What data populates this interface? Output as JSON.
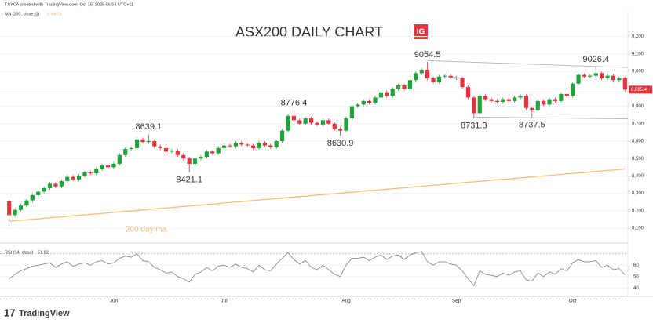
{
  "chart_data": {
    "type": "candlestick",
    "title": "ASX200 DAILY CHART",
    "logo": "IG",
    "brand": "TradingView",
    "credit": "TSYCA created with TradingView.com, Oct 15, 2025 06:54 UTC+11",
    "up_color": "#1fa33a",
    "down_color": "#e3333b",
    "categories": [
      null,
      null,
      null,
      null,
      null,
      null,
      null,
      null,
      null,
      null,
      null,
      null,
      null,
      null,
      null,
      null,
      null,
      null,
      "Jun",
      null,
      null,
      null,
      null,
      null,
      null,
      null,
      null,
      null,
      null,
      null,
      null,
      null,
      null,
      null,
      null,
      null,
      null,
      "Jul",
      null,
      null,
      null,
      null,
      null,
      null,
      null,
      null,
      null,
      null,
      null,
      null,
      null,
      null,
      null,
      null,
      null,
      null,
      null,
      null,
      "Aug",
      null,
      null,
      null,
      null,
      null,
      null,
      null,
      null,
      null,
      null,
      null,
      null,
      null,
      null,
      null,
      null,
      null,
      null,
      "Sep",
      null,
      null,
      null,
      null,
      null,
      null,
      null,
      null,
      null,
      null,
      null,
      null,
      null,
      null,
      null,
      null,
      null,
      null,
      null,
      "Oct",
      null,
      null,
      null,
      null,
      null,
      null,
      null,
      null,
      null
    ],
    "open": [
      8255,
      8175,
      8205,
      8230,
      8260,
      8290,
      8310,
      8330,
      8355,
      8340,
      8370,
      8395,
      8380,
      8400,
      8420,
      8415,
      8440,
      8460,
      8450,
      8470,
      8520,
      8555,
      8560,
      8610,
      8595,
      8600,
      8570,
      8560,
      8540,
      8545,
      8520,
      8500,
      8470,
      8500,
      8510,
      8540,
      8530,
      8560,
      8575,
      8570,
      8590,
      8580,
      8575,
      8560,
      8590,
      8575,
      8565,
      8600,
      8660,
      8745,
      8720,
      8700,
      8730,
      8705,
      8695,
      8720,
      8700,
      8670,
      8660,
      8730,
      8800,
      8810,
      8830,
      8820,
      8850,
      8880,
      8860,
      8900,
      8920,
      8900,
      8950,
      8990,
      9010,
      8960,
      8940,
      8970,
      8975,
      8965,
      8960,
      8910,
      8850,
      8760,
      8860,
      8840,
      8830,
      8825,
      8840,
      8830,
      8850,
      8860,
      8790,
      8780,
      8830,
      8810,
      8840,
      8830,
      8870,
      8860,
      8930,
      8980,
      8970,
      8975,
      8990,
      8960,
      8975,
      8950,
      8960
    ],
    "high": [
      8262,
      8215,
      8240,
      8270,
      8300,
      8320,
      8340,
      8365,
      8365,
      8380,
      8405,
      8405,
      8410,
      8430,
      8430,
      8450,
      8470,
      8470,
      8480,
      8530,
      8565,
      8570,
      8620,
      8620,
      8639.1,
      8610,
      8580,
      8570,
      8555,
      8555,
      8530,
      8510,
      8510,
      8520,
      8550,
      8550,
      8570,
      8585,
      8585,
      8600,
      8600,
      8590,
      8585,
      8600,
      8600,
      8585,
      8610,
      8670,
      8755,
      8776.4,
      8730,
      8740,
      8740,
      8715,
      8730,
      8730,
      8710,
      8680,
      8740,
      8810,
      8820,
      8840,
      8840,
      8860,
      8890,
      8890,
      8910,
      8930,
      8930,
      8960,
      9000,
      9020,
      9054.5,
      8970,
      8980,
      8985,
      8985,
      8975,
      8970,
      8920,
      8860,
      8870,
      8870,
      8850,
      8840,
      8850,
      8850,
      8860,
      8870,
      8870,
      8800,
      8840,
      8840,
      8850,
      8850,
      8880,
      8880,
      8940,
      8990,
      8990,
      8985,
      9026.4,
      9000,
      8985,
      8985,
      8970,
      8970
    ],
    "low": [
      8140,
      8165,
      8195,
      8220,
      8250,
      8280,
      8300,
      8320,
      8330,
      8330,
      8360,
      8370,
      8370,
      8390,
      8405,
      8405,
      8430,
      8440,
      8440,
      8460,
      8510,
      8545,
      8550,
      8585,
      8585,
      8560,
      8550,
      8530,
      8530,
      8510,
      8490,
      8421.1,
      8460,
      8490,
      8500,
      8520,
      8520,
      8550,
      8560,
      8560,
      8570,
      8565,
      8550,
      8550,
      8565,
      8555,
      8555,
      8590,
      8650,
      8710,
      8690,
      8690,
      8695,
      8685,
      8685,
      8690,
      8660,
      8630.9,
      8650,
      8720,
      8790,
      8800,
      8810,
      8810,
      8840,
      8850,
      8850,
      8890,
      8890,
      8890,
      8940,
      8980,
      8950,
      8930,
      8930,
      8960,
      8955,
      8950,
      8900,
      8840,
      8731.3,
      8750,
      8830,
      8820,
      8815,
      8815,
      8820,
      8820,
      8840,
      8780,
      8737.5,
      8770,
      8800,
      8800,
      8820,
      8820,
      8850,
      8850,
      8920,
      8960,
      8960,
      8965,
      8950,
      8950,
      8940,
      8940,
      8885
    ],
    "close": [
      8175,
      8205,
      8230,
      8260,
      8290,
      8310,
      8330,
      8355,
      8340,
      8370,
      8395,
      8380,
      8400,
      8420,
      8415,
      8440,
      8460,
      8450,
      8470,
      8520,
      8555,
      8560,
      8610,
      8595,
      8600,
      8570,
      8560,
      8540,
      8545,
      8520,
      8500,
      8470,
      8500,
      8510,
      8540,
      8530,
      8560,
      8575,
      8570,
      8590,
      8580,
      8575,
      8560,
      8590,
      8575,
      8565,
      8600,
      8660,
      8745,
      8720,
      8700,
      8730,
      8705,
      8695,
      8720,
      8700,
      8670,
      8660,
      8730,
      8800,
      8810,
      8830,
      8820,
      8850,
      8880,
      8860,
      8900,
      8920,
      8900,
      8950,
      8990,
      9010,
      8960,
      8940,
      8970,
      8975,
      8965,
      8960,
      8910,
      8850,
      8760,
      8860,
      8840,
      8830,
      8825,
      8840,
      8830,
      8850,
      8860,
      8790,
      8780,
      8830,
      8810,
      8840,
      8830,
      8870,
      8860,
      8930,
      8980,
      8970,
      8975,
      8990,
      8960,
      8975,
      8950,
      8960,
      8895.4
    ],
    "close_labels": {
      "106": "8,895.4"
    },
    "ylim": [
      8060,
      9320
    ],
    "yticks": [
      {
        "value": 8100,
        "label": "8,100"
      },
      {
        "value": 8200,
        "label": "8,200"
      },
      {
        "value": 8300,
        "label": "8,300"
      },
      {
        "value": 8400,
        "label": "8,400"
      },
      {
        "value": 8500,
        "label": "8,500"
      },
      {
        "value": 8600,
        "label": "8,600"
      },
      {
        "value": 8700,
        "label": "8,700"
      },
      {
        "value": 8800,
        "label": "8,800"
      },
      {
        "value": 8900,
        "label": "8,900"
      },
      {
        "value": 9000,
        "label": "9,000"
      },
      {
        "value": 9100,
        "label": "9,100"
      },
      {
        "value": 9200,
        "label": "9,200"
      }
    ],
    "grid": true,
    "ma": {
      "name": "MA (200, close, 0)",
      "annotation": "200 day ma",
      "color": "#f4bd7c",
      "values": [
        8140,
        8143,
        8146,
        8148,
        8151,
        8154,
        8157,
        8160,
        8163,
        8165,
        8168,
        8171,
        8174,
        8177,
        8180,
        8182,
        8185,
        8188,
        8191,
        8194,
        8197,
        8199,
        8202,
        8205,
        8208,
        8211,
        8214,
        8216,
        8219,
        8222,
        8225,
        8228,
        8231,
        8233,
        8236,
        8239,
        8242,
        8245,
        8248,
        8250,
        8253,
        8256,
        8259,
        8262,
        8265,
        8267,
        8270,
        8273,
        8276,
        8279,
        8282,
        8284,
        8287,
        8290,
        8293,
        8296,
        8298,
        8301,
        8304,
        8307,
        8310,
        8313,
        8316,
        8318,
        8321,
        8324,
        8327,
        8330,
        8332,
        8335,
        8338,
        8341,
        8344,
        8347,
        8349,
        8352,
        8355,
        8358,
        8361,
        8364,
        8366,
        8369,
        8372,
        8375,
        8378,
        8381,
        8383,
        8386,
        8389,
        8392,
        8395,
        8398,
        8400,
        8403,
        8406,
        8409,
        8412,
        8415,
        8417,
        8420,
        8423,
        8426,
        8429,
        8432,
        8434,
        8437,
        8440.3
      ],
      "value_labels": {
        "106": "8,440.3"
      }
    },
    "rsi": {
      "name": "RSI (14, close)",
      "color": "#8a8a8a",
      "values": [
        48,
        52,
        55,
        57,
        59,
        60,
        61,
        62,
        58,
        61,
        63,
        59,
        61,
        62,
        60,
        63,
        64,
        61,
        62,
        66,
        68,
        67,
        70,
        64,
        63,
        58,
        56,
        53,
        54,
        50,
        48,
        45,
        52,
        54,
        58,
        55,
        59,
        60,
        58,
        61,
        58,
        57,
        54,
        60,
        56,
        55,
        61,
        66,
        71,
        65,
        61,
        64,
        58,
        56,
        60,
        56,
        52,
        50,
        60,
        66,
        66,
        67,
        64,
        67,
        69,
        65,
        68,
        69,
        65,
        69,
        71,
        72,
        63,
        60,
        63,
        63,
        61,
        60,
        55,
        48,
        42,
        55,
        52,
        51,
        50,
        53,
        51,
        54,
        55,
        47,
        46,
        53,
        50,
        54,
        52,
        57,
        55,
        62,
        65,
        63,
        63,
        64,
        58,
        60,
        56,
        57,
        51.62
      ],
      "ylim": [
        27,
        74
      ],
      "yticks": [
        40,
        50,
        60
      ],
      "levels": [
        70,
        30
      ]
    },
    "annotations": [
      8639.1,
      8421.1,
      8776.4,
      8630.9,
      9054.5,
      8731.3,
      8737.5,
      9026.4
    ],
    "trendlines": [
      [
        9062,
        9022
      ],
      [
        8738,
        8728
      ]
    ]
  }
}
